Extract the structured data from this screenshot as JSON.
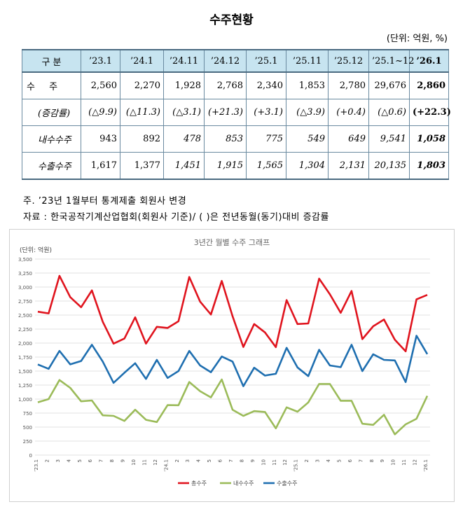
{
  "title": "수주현황",
  "unit": "(단위: 억원, %)",
  "table": {
    "header_label": "구  분",
    "periods": [
      "’23.1",
      "’24.1",
      "’24.11",
      "’24.12",
      "’25.1",
      "’25.11",
      "’25.12",
      "’25.1~12",
      "’26.1"
    ],
    "rows": [
      {
        "label": "수  주",
        "values": [
          "2,560",
          "2,270",
          "1,928",
          "2,768",
          "2,340",
          "1,853",
          "2,780",
          "29,676",
          "2,860"
        ]
      },
      {
        "label": "(증감률)",
        "values": [
          "(△9.9)",
          "(△11.3)",
          "(△3.1)",
          "(+21.3)",
          "(+3.1)",
          "(△3.9)",
          "(+0.4)",
          "(△0.6)",
          "(+22.3)"
        ]
      },
      {
        "label": "내수수주",
        "values": [
          "943",
          "892",
          "478",
          "853",
          "775",
          "549",
          "649",
          "9,541",
          "1,058"
        ]
      },
      {
        "label": "수출수주",
        "values": [
          "1,617",
          "1,377",
          "1,451",
          "1,915",
          "1,565",
          "1,304",
          "2,131",
          "20,135",
          "1,803"
        ]
      }
    ]
  },
  "notes": {
    "note1": "주. ’23년 1월부터 통계제출 회원사 변경",
    "note2": "자료 : 한국공작기계산업협회(회원사 기준)/ (   )은 전년동월(동기)대비 증감률"
  },
  "chart_data": {
    "type": "line",
    "title": "3년간 월별 수주 그래프",
    "ylabel": "(단위: 억원)",
    "ylim": [
      0,
      3500
    ],
    "yticks": [
      "0",
      "250",
      "500",
      "750",
      "1,000",
      "1,250",
      "1,500",
      "1,750",
      "2,000",
      "2,250",
      "2,500",
      "2,750",
      "3,000",
      "3,250",
      "3,500"
    ],
    "x_labels": [
      "’23.1",
      "2",
      "3",
      "4",
      "5",
      "6",
      "7",
      "8",
      "9",
      "10",
      "11",
      "12",
      "’24.1",
      "2",
      "3",
      "4",
      "5",
      "6",
      "7",
      "8",
      "9",
      "10",
      "11",
      "12",
      "’25.1",
      "2",
      "3",
      "4",
      "5",
      "6",
      "7",
      "8",
      "9",
      "10",
      "11",
      "12",
      "’26.1"
    ],
    "legend_position": "bottom",
    "grid": true,
    "series": [
      {
        "name": "총수주",
        "color": "#e0141e",
        "values": [
          2560,
          2530,
          3200,
          2820,
          2640,
          2940,
          2380,
          1990,
          2080,
          2460,
          1990,
          2290,
          2270,
          2390,
          3180,
          2740,
          2510,
          3110,
          2480,
          1930,
          2340,
          2190,
          1928,
          2768,
          2340,
          2350,
          3150,
          2870,
          2540,
          2930,
          2070,
          2300,
          2420,
          2060,
          1853,
          2780,
          2860
        ]
      },
      {
        "name": "내수수주",
        "color": "#9bbb59",
        "values": [
          943,
          1000,
          1340,
          1200,
          960,
          975,
          710,
          700,
          610,
          810,
          630,
          590,
          892,
          890,
          1305,
          1140,
          1030,
          1350,
          810,
          700,
          785,
          770,
          478,
          853,
          775,
          940,
          1270,
          1270,
          970,
          970,
          560,
          540,
          720,
          370,
          549,
          649,
          1058
        ]
      },
      {
        "name": "수출수주",
        "color": "#1f6fb0",
        "values": [
          1617,
          1540,
          1860,
          1620,
          1680,
          1970,
          1670,
          1290,
          1470,
          1640,
          1360,
          1700,
          1377,
          1500,
          1860,
          1600,
          1480,
          1760,
          1670,
          1230,
          1560,
          1420,
          1451,
          1915,
          1565,
          1410,
          1880,
          1600,
          1570,
          1970,
          1500,
          1800,
          1700,
          1690,
          1304,
          2131,
          1803
        ]
      }
    ]
  }
}
